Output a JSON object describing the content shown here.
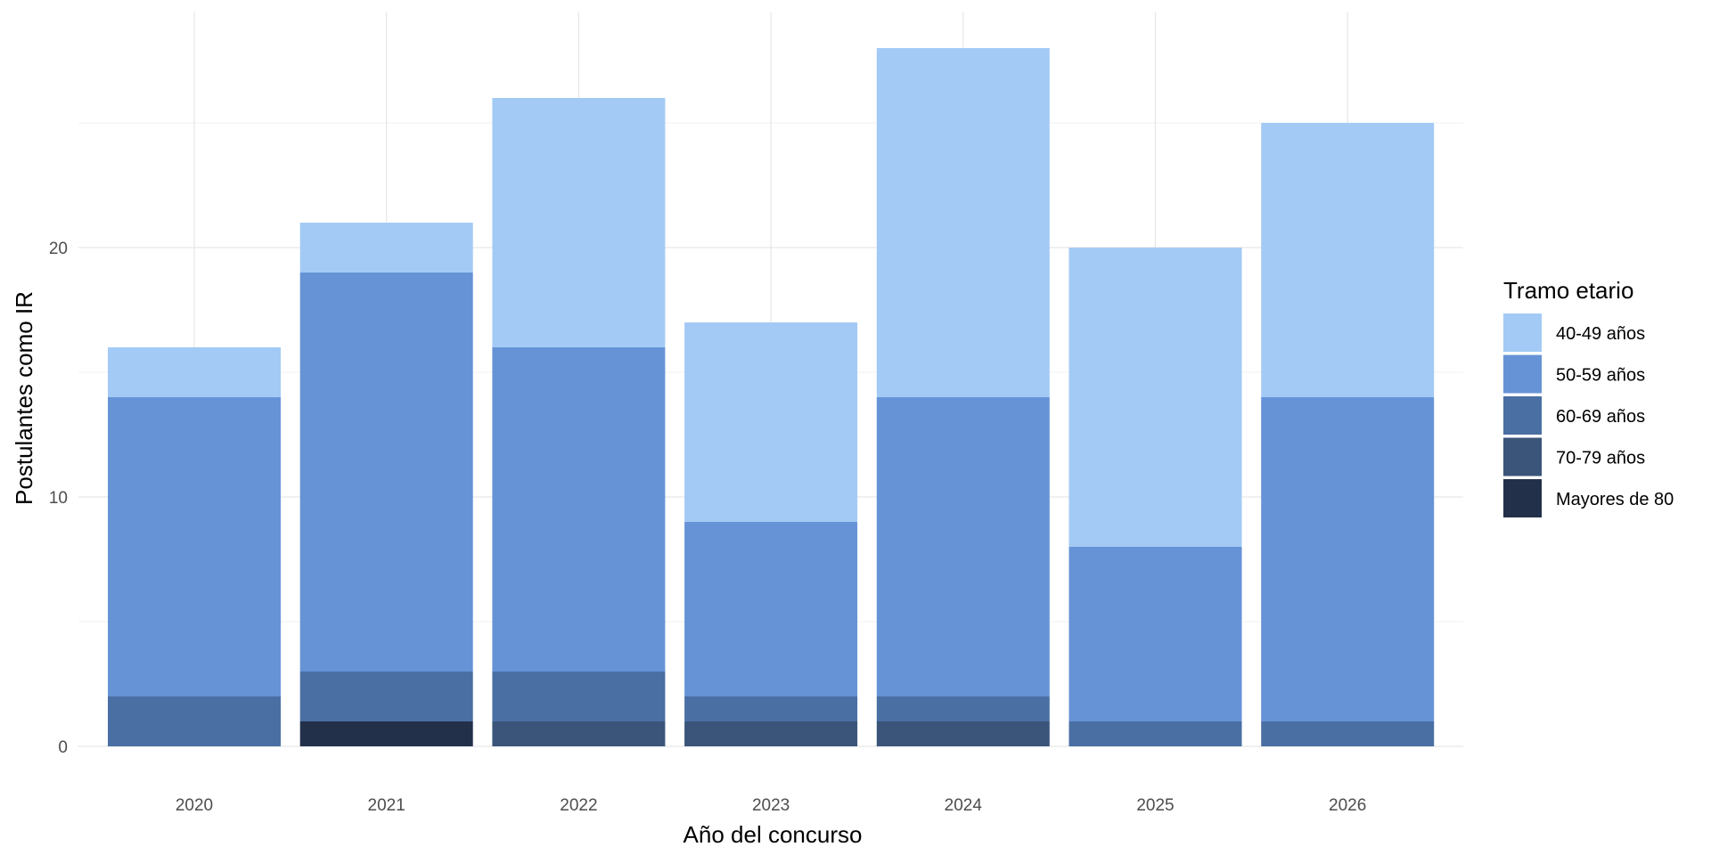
{
  "chart_data": {
    "type": "bar",
    "stacked": true,
    "xlabel": "Año del concurso",
    "ylabel": "Postulantes como IR",
    "categories": [
      "2020",
      "2021",
      "2022",
      "2023",
      "2024",
      "2025",
      "2026"
    ],
    "y_ticks": [
      0,
      10,
      20
    ],
    "ylim": [
      0,
      28
    ],
    "grid": true,
    "legend": {
      "title": "Tramo etario",
      "placement": "right"
    },
    "series": [
      {
        "name": "Mayores de 80",
        "color": "#22304a",
        "values": [
          0,
          1,
          0,
          0,
          0,
          0,
          0
        ]
      },
      {
        "name": "70-79 años",
        "color": "#3a5579",
        "values": [
          0,
          0,
          1,
          1,
          1,
          0,
          0
        ]
      },
      {
        "name": "60-69 años",
        "color": "#4a6fa3",
        "values": [
          2,
          2,
          2,
          1,
          1,
          1,
          1
        ]
      },
      {
        "name": "50-59 años",
        "color": "#6693d6",
        "values": [
          12,
          16,
          13,
          7,
          12,
          7,
          13
        ]
      },
      {
        "name": "40-49 años",
        "color": "#a3caf5",
        "values": [
          2,
          2,
          10,
          8,
          14,
          12,
          11
        ]
      }
    ]
  }
}
